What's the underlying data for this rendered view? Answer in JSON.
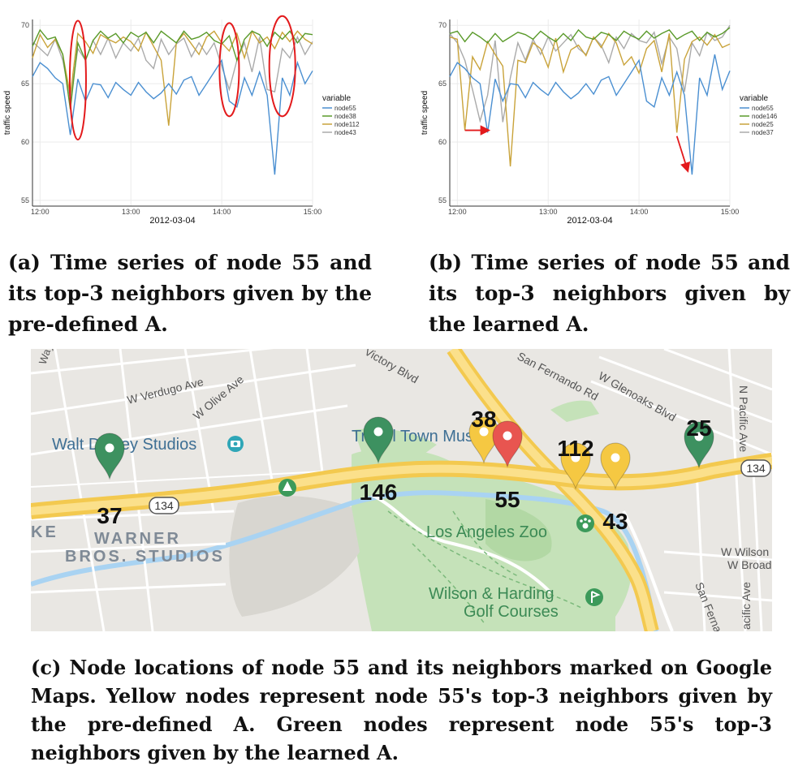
{
  "panels": [
    {
      "id": "a",
      "caption": "(a) Time series of node 55 and its top-3 neighbors given by the pre-defined A.",
      "chart": {
        "type": "line",
        "xlabel": "2012-03-04",
        "ylabel": "traffic speed",
        "xticks": [
          "12:00",
          "13:00",
          "14:00",
          "15:00"
        ],
        "yticks": [
          55,
          60,
          65,
          70
        ],
        "legend_title": "variable",
        "legend_position": "right",
        "series_names": [
          "node55",
          "node38",
          "node112",
          "node43"
        ],
        "colors": [
          "#4a8fd1",
          "#5a9a2a",
          "#c9a33a",
          "#aaaaaa"
        ]
      }
    },
    {
      "id": "b",
      "caption": "(b) Time series of node 55 and its top-3 neighbors given by the learned A.",
      "chart": {
        "type": "line",
        "xlabel": "2012-03-04",
        "ylabel": "traffic speed",
        "xticks": [
          "12:00",
          "13:00",
          "14:00",
          "15:00"
        ],
        "yticks": [
          55,
          60,
          65,
          70
        ],
        "legend_title": "variable",
        "legend_position": "right",
        "series_names": [
          "node55",
          "node146",
          "node25",
          "node37"
        ],
        "colors": [
          "#4a8fd1",
          "#5a9a2a",
          "#c9a33a",
          "#aaaaaa"
        ]
      }
    }
  ],
  "chart_data": [
    {
      "type": "line",
      "xlabel": "2012-03-04",
      "ylabel": "traffic speed",
      "x": [
        "11:55",
        "12:00",
        "12:05",
        "12:10",
        "12:15",
        "12:20",
        "12:25",
        "12:30",
        "12:35",
        "12:40",
        "12:45",
        "12:50",
        "12:55",
        "13:00",
        "13:05",
        "13:10",
        "13:15",
        "13:20",
        "13:25",
        "13:30",
        "13:35",
        "13:40",
        "13:45",
        "13:50",
        "13:55",
        "14:00",
        "14:05",
        "14:10",
        "14:15",
        "14:20",
        "14:25",
        "14:30",
        "14:35",
        "14:40",
        "14:45",
        "14:50",
        "14:55",
        "15:00"
      ],
      "xlim": [
        "11:55",
        "15:00"
      ],
      "ylim": [
        54.5,
        70.5
      ],
      "grid": true,
      "series": [
        {
          "name": "node55",
          "values": [
            65.6,
            66.8,
            66.3,
            65.5,
            65.0,
            60.6,
            65.4,
            63.5,
            65.0,
            64.9,
            63.8,
            65.1,
            64.5,
            64.0,
            65.1,
            64.3,
            63.7,
            64.2,
            65.0,
            64.1,
            65.3,
            65.6,
            64.0,
            65.0,
            66.0,
            67.0,
            63.5,
            63.0,
            65.5,
            64.0,
            66.0,
            64.0,
            57.2,
            65.5,
            64.0,
            66.8,
            65.0,
            66.1
          ]
        },
        {
          "name": "node38",
          "values": [
            68.2,
            69.6,
            68.8,
            69.0,
            67.5,
            62.8,
            68.5,
            67.0,
            68.7,
            69.5,
            68.9,
            69.3,
            68.5,
            69.4,
            69.0,
            69.4,
            68.5,
            69.5,
            69.0,
            68.5,
            69.5,
            68.8,
            69.0,
            69.4,
            68.7,
            68.4,
            69.1,
            67.0,
            68.8,
            69.5,
            69.2,
            68.2,
            69.4,
            68.8,
            69.5,
            68.5,
            69.3,
            69.2
          ]
        },
        {
          "name": "node112",
          "values": [
            67.2,
            69.2,
            68.1,
            68.8,
            67.5,
            64.0,
            69.3,
            68.6,
            67.6,
            69.2,
            68.8,
            68.5,
            69.0,
            68.6,
            67.8,
            69.4,
            68.2,
            67.0,
            61.4,
            68.5,
            69.3,
            68.4,
            67.5,
            69.0,
            69.5,
            68.5,
            67.8,
            69.3,
            67.2,
            69.5,
            68.5,
            69.0,
            68.0,
            69.4,
            68.6,
            69.5,
            68.8,
            68.4
          ]
        },
        {
          "name": "node43",
          "values": [
            68.6,
            68.0,
            67.4,
            68.8,
            67.0,
            63.7,
            68.0,
            67.0,
            68.7,
            67.5,
            68.9,
            67.2,
            68.5,
            67.8,
            68.9,
            67.0,
            66.3,
            68.8,
            67.5,
            68.4,
            68.9,
            67.3,
            68.5,
            67.5,
            68.5,
            66.5,
            64.5,
            67.0,
            68.5,
            66.0,
            69.0,
            64.5,
            64.3,
            68.0,
            67.2,
            69.0,
            67.5,
            68.6
          ]
        }
      ],
      "annotations": [
        "red ellipse around 12:25 dip",
        "red ellipse around 14:00–14:10 dip",
        "red ellipse around 14:35–14:50 dip"
      ]
    },
    {
      "type": "line",
      "xlabel": "2012-03-04",
      "ylabel": "traffic speed",
      "x": [
        "11:55",
        "12:00",
        "12:05",
        "12:10",
        "12:15",
        "12:20",
        "12:25",
        "12:30",
        "12:35",
        "12:40",
        "12:45",
        "12:50",
        "12:55",
        "13:00",
        "13:05",
        "13:10",
        "13:15",
        "13:20",
        "13:25",
        "13:30",
        "13:35",
        "13:40",
        "13:45",
        "13:50",
        "13:55",
        "14:00",
        "14:05",
        "14:10",
        "14:15",
        "14:20",
        "14:25",
        "14:30",
        "14:35",
        "14:40",
        "14:45",
        "14:50",
        "14:55",
        "15:00"
      ],
      "xlim": [
        "11:55",
        "15:00"
      ],
      "ylim": [
        54.5,
        70.5
      ],
      "grid": true,
      "series": [
        {
          "name": "node55",
          "values": [
            65.6,
            66.8,
            66.3,
            65.5,
            65.0,
            60.8,
            65.4,
            63.5,
            65.0,
            64.9,
            63.8,
            65.1,
            64.5,
            64.0,
            65.1,
            64.3,
            63.7,
            64.2,
            65.0,
            64.1,
            65.3,
            65.6,
            64.0,
            65.0,
            66.0,
            67.0,
            63.5,
            63.0,
            65.5,
            64.0,
            66.0,
            64.0,
            57.2,
            65.5,
            64.0,
            67.5,
            64.5,
            66.1
          ]
        },
        {
          "name": "node146",
          "values": [
            69.3,
            69.5,
            68.6,
            69.4,
            69.0,
            68.5,
            69.3,
            68.6,
            69.0,
            69.4,
            69.2,
            68.8,
            69.5,
            69.0,
            68.6,
            69.3,
            68.7,
            69.6,
            69.0,
            68.8,
            69.4,
            69.2,
            68.7,
            69.5,
            69.1,
            68.8,
            69.5,
            68.9,
            69.3,
            69.6,
            68.8,
            69.2,
            69.5,
            68.7,
            69.4,
            69.0,
            69.3,
            69.8
          ]
        },
        {
          "name": "node25",
          "values": [
            69.0,
            68.8,
            61.0,
            67.3,
            66.2,
            68.6,
            67.5,
            66.5,
            57.9,
            67.0,
            66.8,
            68.5,
            68.0,
            66.4,
            68.9,
            66.0,
            67.9,
            68.3,
            67.4,
            69.0,
            68.1,
            69.3,
            68.5,
            66.6,
            67.3,
            65.9,
            68.0,
            68.7,
            66.0,
            69.3,
            60.8,
            67.1,
            68.6,
            69.0,
            68.3,
            69.2,
            68.1,
            68.4
          ]
        },
        {
          "name": "node37",
          "values": [
            69.3,
            68.5,
            67.0,
            64.5,
            61.8,
            64.0,
            68.7,
            61.7,
            65.5,
            68.5,
            67.0,
            68.8,
            67.5,
            69.0,
            67.8,
            68.5,
            69.2,
            68.0,
            67.5,
            69.0,
            68.3,
            66.8,
            69.0,
            68.0,
            69.3,
            68.7,
            68.5,
            69.4,
            66.7,
            69.0,
            68.0,
            64.3,
            68.5,
            67.4,
            69.4,
            68.7,
            69.0,
            70.0
          ]
        }
      ],
      "annotations": [
        "red arrow pointing from 12:05 node25 dip to 12:20 node55 dip",
        "red arrow pointing from 14:25 node25 dip to 14:35 node55 dip"
      ]
    }
  ],
  "map": {
    "caption": "(c) Node locations of node 55 and its neighbors marked on Google Maps. Yellow nodes represent node 55's top-3 neighbors given by the pre-defined A. Green nodes represent node 55's top-3 neighbors given by the learned A.",
    "labels": {
      "verdugo": "W Verdugo Ave",
      "olive": "W Olive Ave",
      "disney": "Walt Disney Studios",
      "travel": "Travel Town Museum",
      "fernando": "San Fernando Rd",
      "glenoaks": "W Glenoaks Blvd",
      "pacific": "N Pacific Ave",
      "victory": "Victory Blvd",
      "way": "Way",
      "warner1": "WARNER",
      "warner2": "BROS. STUDIOS",
      "ke": "KE",
      "zoo": "Los Angeles Zoo",
      "golf1": "Wilson & Harding",
      "golf2": "Golf Courses",
      "wwilson": "W Wilson",
      "wbroad": "W Broad",
      "sanfern": "San Fernan",
      "pacific2": "acific Ave",
      "route_main": "134",
      "route_west": "134"
    },
    "nodes": [
      {
        "id": "37",
        "label": "37",
        "color": "#3d9160"
      },
      {
        "id": "146",
        "label": "146",
        "color": "#3d9160"
      },
      {
        "id": "38",
        "label": "38",
        "color": "#f5c842"
      },
      {
        "id": "55",
        "label": "55",
        "color": "#e85550"
      },
      {
        "id": "112",
        "label": "112",
        "color": "#f5c842"
      },
      {
        "id": "43",
        "label": "43",
        "color": "#f5c842"
      },
      {
        "id": "25",
        "label": "25",
        "color": "#3d9160"
      }
    ]
  }
}
